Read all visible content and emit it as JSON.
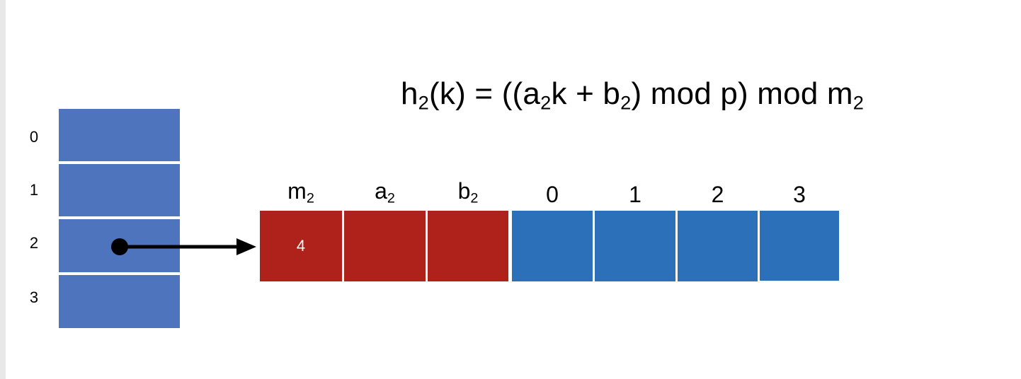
{
  "formula": {
    "h": "h",
    "h_sub": "2",
    "part1": "(k) = ((a",
    "a_sub": "2",
    "part2": "k + b",
    "b_sub": "2",
    "part3": ") mod p) mod m",
    "m_sub": "2"
  },
  "outer_table": {
    "indices": [
      "0",
      "1",
      "2",
      "3"
    ]
  },
  "inner_table": {
    "header_labels": [
      {
        "base": "m",
        "sub": "2"
      },
      {
        "base": "a",
        "sub": "2"
      },
      {
        "base": "b",
        "sub": "2"
      }
    ],
    "slot_labels": [
      "0",
      "1",
      "2",
      "3"
    ],
    "m_value": "4"
  },
  "colors": {
    "outer_slot": "#4e74bd",
    "header_cell": "#ae221b",
    "slot_cell": "#2d70ba",
    "arrow": "#000000"
  }
}
